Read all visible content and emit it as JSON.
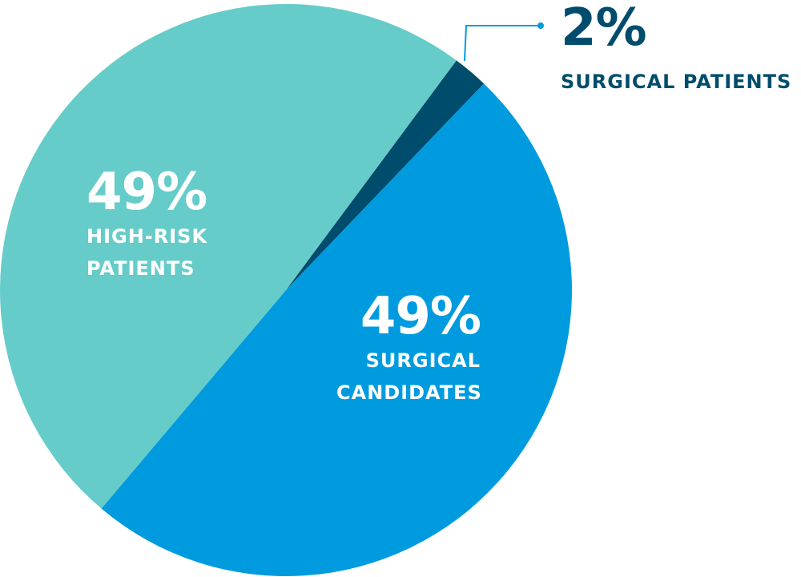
{
  "chart_data": {
    "type": "pie",
    "categories": [
      "SURGICAL PATIENTS",
      "SURGICAL CANDIDATES",
      "HIGH-RISK PATIENTS"
    ],
    "values": [
      2,
      49,
      49
    ],
    "value_labels": [
      "2%",
      "49%",
      "49%"
    ],
    "colors": [
      "#004c6c",
      "#009bdf",
      "#66ccc9"
    ]
  }
}
